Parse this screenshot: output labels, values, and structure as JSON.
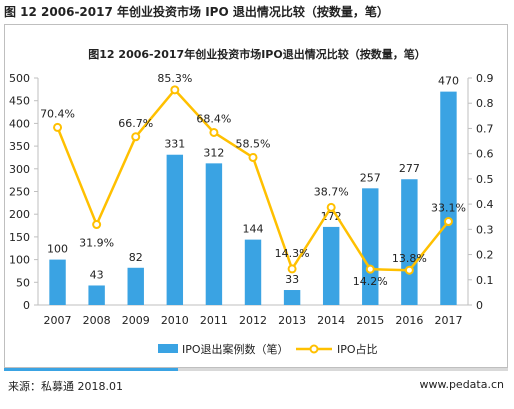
{
  "figure_label": "图 12 2006-2017 年创业投资市场 IPO 退出情况比较（按数量，笔）",
  "source": "来源：私募通 2018.01",
  "website": "www.pedata.cn",
  "colors": {
    "bar": "#3aa3e3",
    "line": "#ffc000",
    "marker_fill": "#ffffff",
    "axis": "#bfbfbf",
    "accent": "#3aa3e3"
  },
  "chart_data": {
    "type": "bar",
    "title": "图12 2006-2017年创业投资市场IPO退出情况比较（按数量，笔）",
    "categories": [
      "2007",
      "2008",
      "2009",
      "2010",
      "2011",
      "2012",
      "2013",
      "2014",
      "2015",
      "2016",
      "2017"
    ],
    "series": [
      {
        "name": "IPO退出案例数（笔）",
        "type": "bar",
        "axis": "left",
        "values": [
          100,
          43,
          82,
          331,
          312,
          144,
          33,
          172,
          257,
          277,
          470
        ],
        "labels": [
          "100",
          "43",
          "82",
          "331",
          "312",
          "144",
          "33",
          "172",
          "257",
          "277",
          "470"
        ]
      },
      {
        "name": "IPO占比",
        "type": "line",
        "axis": "right",
        "values": [
          0.704,
          0.319,
          0.667,
          0.853,
          0.684,
          0.585,
          0.143,
          0.387,
          0.142,
          0.138,
          0.331
        ],
        "labels": [
          "70.4%",
          "31.9%",
          "66.7%",
          "85.3%",
          "68.4%",
          "58.5%",
          "14.3%",
          "38.7%",
          "14.2%",
          "13.8%",
          "33.1%"
        ]
      }
    ],
    "y_left": {
      "ylim": [
        0,
        500
      ],
      "ticks": [
        "0",
        "50",
        "100",
        "150",
        "200",
        "250",
        "300",
        "350",
        "400",
        "450",
        "500"
      ]
    },
    "y_right": {
      "ylim": [
        0,
        0.9
      ],
      "ticks": [
        "0",
        "0.1",
        "0.2",
        "0.3",
        "0.4",
        "0.5",
        "0.6",
        "0.7",
        "0.8",
        "0.9"
      ]
    },
    "grid": false,
    "legend": "bottom"
  }
}
